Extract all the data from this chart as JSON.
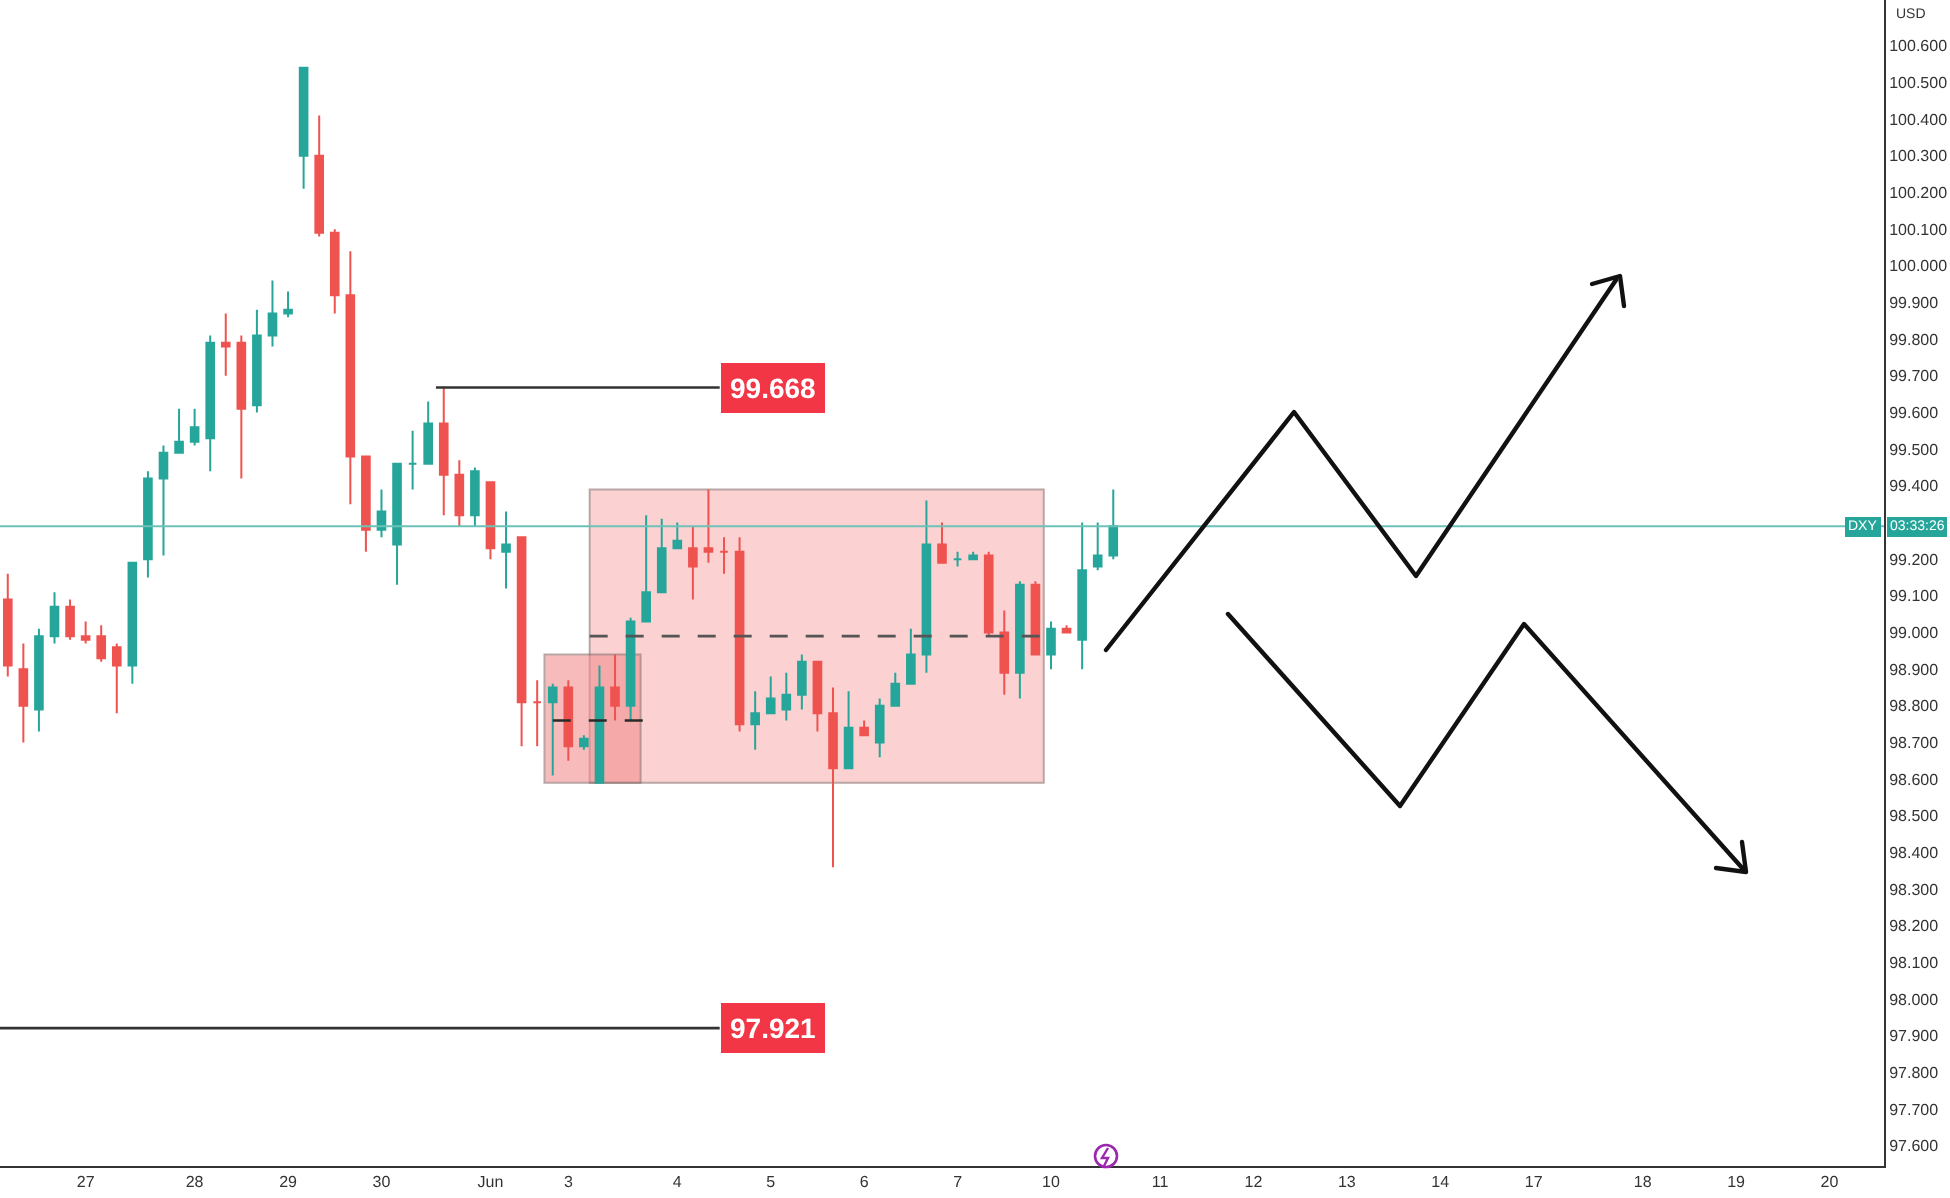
{
  "chart_data": {
    "type": "candlestick",
    "categories": [
      null,
      null,
      null,
      null,
      null,
      "27",
      null,
      null,
      null,
      null,
      null,
      null,
      "28",
      null,
      null,
      null,
      null,
      null,
      "29",
      null,
      null,
      null,
      null,
      null,
      "30",
      null,
      null,
      null,
      null,
      null,
      null,
      "Jun",
      null,
      null,
      null,
      null,
      "3",
      null,
      null,
      null,
      null,
      null,
      null,
      "4",
      null,
      null,
      null,
      null,
      null,
      "5",
      null,
      null,
      null,
      null,
      null,
      "6",
      null,
      null,
      null,
      null,
      null,
      "7",
      null,
      null,
      null,
      null,
      null,
      "10",
      null,
      null,
      null,
      null,
      null,
      null,
      "11",
      null,
      null,
      null,
      null,
      null,
      "12",
      null,
      null,
      null,
      null,
      null,
      "13",
      null,
      null,
      null,
      null,
      null,
      "14",
      null,
      null,
      null,
      null,
      null,
      "17",
      null,
      null,
      null,
      null,
      null,
      null,
      "18",
      null,
      null,
      null,
      null,
      null,
      "19",
      null,
      null,
      null,
      null,
      null,
      "20",
      null,
      null,
      null
    ],
    "ohlc": [
      [
        99.09,
        99.16,
        98.88,
        98.91
      ],
      [
        98.9,
        98.97,
        98.7,
        98.8
      ],
      [
        98.79,
        99.01,
        98.73,
        98.99
      ],
      [
        98.99,
        99.11,
        98.97,
        99.07
      ],
      [
        99.07,
        99.09,
        98.98,
        98.99
      ],
      [
        98.99,
        99.03,
        98.97,
        98.98
      ],
      [
        98.99,
        99.02,
        98.92,
        98.93
      ],
      [
        98.96,
        98.97,
        98.78,
        98.91
      ],
      [
        98.91,
        99.19,
        98.86,
        99.19
      ],
      [
        99.2,
        99.44,
        99.15,
        99.42
      ],
      [
        99.42,
        99.51,
        99.21,
        99.49
      ],
      [
        99.49,
        99.61,
        99.49,
        99.52
      ],
      [
        99.52,
        99.61,
        99.51,
        99.56
      ],
      [
        99.53,
        99.81,
        99.44,
        99.79
      ],
      [
        99.79,
        99.87,
        99.7,
        99.78
      ],
      [
        99.79,
        99.81,
        99.42,
        99.61
      ],
      [
        99.62,
        99.88,
        99.6,
        99.81
      ],
      [
        99.81,
        99.96,
        99.78,
        99.87
      ],
      [
        99.87,
        99.93,
        99.86,
        99.88
      ],
      [
        100.3,
        100.54,
        100.21,
        100.54
      ],
      [
        100.3,
        100.41,
        100.08,
        100.09
      ],
      [
        100.09,
        100.1,
        99.87,
        99.92
      ],
      [
        99.92,
        100.04,
        99.35,
        99.48
      ],
      [
        99.48,
        99.48,
        99.22,
        99.28
      ],
      [
        99.28,
        99.39,
        99.26,
        99.33
      ],
      [
        99.24,
        99.46,
        99.13,
        99.46
      ],
      [
        99.46,
        99.55,
        99.39,
        99.46
      ],
      [
        99.46,
        99.63,
        99.46,
        99.57
      ],
      [
        99.57,
        99.67,
        99.32,
        99.43
      ],
      [
        99.43,
        99.47,
        99.29,
        99.32
      ],
      [
        99.32,
        99.45,
        99.29,
        99.44
      ],
      [
        99.41,
        99.41,
        99.2,
        99.23
      ],
      [
        99.22,
        99.33,
        99.12,
        99.24
      ],
      [
        99.26,
        99.26,
        98.69,
        98.81
      ],
      [
        98.81,
        98.87,
        98.69,
        98.81
      ],
      [
        98.81,
        98.86,
        98.61,
        98.85
      ],
      [
        98.85,
        98.87,
        98.65,
        98.69
      ],
      [
        98.69,
        98.72,
        98.68,
        98.71
      ],
      [
        98.59,
        98.91,
        98.59,
        98.85
      ],
      [
        98.85,
        98.94,
        98.76,
        98.8
      ],
      [
        98.8,
        99.04,
        98.76,
        99.03
      ],
      [
        99.03,
        99.32,
        99.03,
        99.11
      ],
      [
        99.11,
        99.31,
        99.11,
        99.23
      ],
      [
        99.23,
        99.3,
        99.23,
        99.25
      ],
      [
        99.23,
        99.29,
        99.09,
        99.18
      ],
      [
        99.23,
        99.39,
        99.19,
        99.22
      ],
      [
        99.22,
        99.26,
        99.16,
        99.22
      ],
      [
        99.22,
        99.26,
        98.73,
        98.75
      ],
      [
        98.75,
        98.84,
        98.68,
        98.78
      ],
      [
        98.78,
        98.88,
        98.78,
        98.82
      ],
      [
        98.79,
        98.89,
        98.76,
        98.83
      ],
      [
        98.83,
        98.94,
        98.79,
        98.92
      ],
      [
        98.92,
        98.92,
        98.73,
        98.78
      ],
      [
        98.78,
        98.85,
        98.36,
        98.63
      ],
      [
        98.63,
        98.84,
        98.63,
        98.74
      ],
      [
        98.74,
        98.76,
        98.72,
        98.72
      ],
      [
        98.7,
        98.82,
        98.66,
        98.8
      ],
      [
        98.8,
        98.89,
        98.8,
        98.86
      ],
      [
        98.86,
        99.01,
        98.86,
        98.94
      ],
      [
        98.94,
        99.36,
        98.89,
        99.24
      ],
      [
        99.24,
        99.3,
        99.19,
        99.19
      ],
      [
        99.2,
        99.22,
        99.18,
        99.2
      ],
      [
        99.2,
        99.22,
        99.2,
        99.21
      ],
      [
        99.21,
        99.22,
        98.99,
        99.0
      ],
      [
        99.0,
        99.06,
        98.83,
        98.89
      ],
      [
        98.89,
        99.14,
        98.82,
        99.13
      ],
      [
        99.13,
        99.14,
        98.94,
        98.94
      ],
      [
        98.94,
        99.03,
        98.9,
        99.01
      ],
      [
        99.01,
        99.02,
        99.0,
        99.0
      ],
      [
        98.98,
        99.3,
        98.9,
        99.17
      ],
      [
        99.18,
        99.3,
        99.17,
        99.21
      ],
      [
        99.21,
        99.39,
        99.2,
        99.29
      ],
      null,
      null,
      null,
      null,
      null,
      null,
      null,
      null,
      null,
      null,
      null,
      null,
      null,
      null,
      null,
      null,
      null,
      null,
      null,
      null,
      null,
      null,
      null,
      null,
      null,
      null,
      null,
      null,
      null,
      null,
      null,
      null,
      null,
      null,
      null,
      null,
      null,
      null,
      null,
      null,
      null,
      null,
      null,
      null,
      null,
      null,
      null,
      null,
      null
    ],
    "ylim": [
      97.545,
      100.725
    ],
    "yticks": [
      {
        "value": 97.6,
        "label": "97.600"
      },
      {
        "value": 97.7,
        "label": "97.700"
      },
      {
        "value": 97.8,
        "label": "97.800"
      },
      {
        "value": 97.9,
        "label": "97.900"
      },
      {
        "value": 98.0,
        "label": "98.000"
      },
      {
        "value": 98.1,
        "label": "98.100"
      },
      {
        "value": 98.2,
        "label": "98.200"
      },
      {
        "value": 98.3,
        "label": "98.300"
      },
      {
        "value": 98.4,
        "label": "98.400"
      },
      {
        "value": 98.5,
        "label": "98.500"
      },
      {
        "value": 98.6,
        "label": "98.600"
      },
      {
        "value": 98.7,
        "label": "98.700"
      },
      {
        "value": 98.8,
        "label": "98.800"
      },
      {
        "value": 98.9,
        "label": "98.900"
      },
      {
        "value": 99.0,
        "label": "99.000"
      },
      {
        "value": 99.1,
        "label": "99.100"
      },
      {
        "value": 99.2,
        "label": "99.200"
      },
      {
        "value": 99.3,
        "label": null
      },
      {
        "value": 99.4,
        "label": "99.400"
      },
      {
        "value": 99.5,
        "label": "99.500"
      },
      {
        "value": 99.6,
        "label": "99.600"
      },
      {
        "value": 99.7,
        "label": "99.700"
      },
      {
        "value": 99.8,
        "label": "99.800"
      },
      {
        "value": 99.9,
        "label": "99.900"
      },
      {
        "value": 100.0,
        "label": "100.000"
      },
      {
        "value": 100.1,
        "label": "100.100"
      },
      {
        "value": 100.2,
        "label": "100.200"
      },
      {
        "value": 100.3,
        "label": "100.300"
      },
      {
        "value": 100.4,
        "label": "100.400"
      },
      {
        "value": 100.5,
        "label": "100.500"
      },
      {
        "value": 100.6,
        "label": "100.600"
      }
    ],
    "ref_lines": [
      {
        "axis": "y",
        "value": 99.668,
        "label": "99.668",
        "color": "#333333"
      },
      {
        "axis": "y",
        "value": 97.921,
        "label": "97.921",
        "color": "#333333"
      },
      {
        "axis": "y",
        "value": 98.99,
        "line_style": "dashed",
        "color": "#555555"
      },
      {
        "axis": "y",
        "value": 99.29,
        "color": "#6cc2b8"
      }
    ],
    "bands": [
      {
        "axis": "y",
        "from": 98.59,
        "to": 99.39,
        "color": "#f9b4b4"
      },
      {
        "axis": "y",
        "from": 98.59,
        "to": 98.94,
        "color": "#f28f8f"
      }
    ],
    "series": [
      {
        "type": "line",
        "line_style": "dashed",
        "color": "#2a2a2a",
        "values": [
          null,
          null,
          null,
          null,
          null,
          null,
          null,
          null,
          null,
          null,
          null,
          null,
          null,
          null,
          null,
          null,
          null,
          null,
          null,
          null,
          null,
          null,
          null,
          null,
          null,
          null,
          null,
          null,
          null,
          null,
          null,
          null,
          null,
          null,
          null,
          98.76,
          null,
          null,
          null,
          null,
          null,
          98.76,
          null,
          null,
          null,
          null,
          null,
          null,
          null,
          null,
          null,
          null,
          null,
          null,
          null,
          null,
          null,
          null,
          null,
          null,
          null,
          null,
          null,
          null,
          null,
          null,
          null,
          null,
          null,
          null,
          null,
          null,
          null,
          null,
          null,
          null,
          null,
          null,
          null,
          null,
          null,
          null,
          null,
          null,
          null,
          null,
          null,
          null,
          null,
          null,
          null,
          null,
          null,
          null,
          null,
          null,
          null,
          null,
          null,
          null,
          null,
          null,
          null,
          null,
          null,
          null,
          null,
          null,
          null,
          null,
          null,
          null,
          null,
          null,
          null,
          null,
          null,
          null,
          null,
          null,
          null
        ]
      }
    ],
    "annotations": [
      "USD",
      "DXY",
      "03:33:26"
    ],
    "grid": false
  }
}
